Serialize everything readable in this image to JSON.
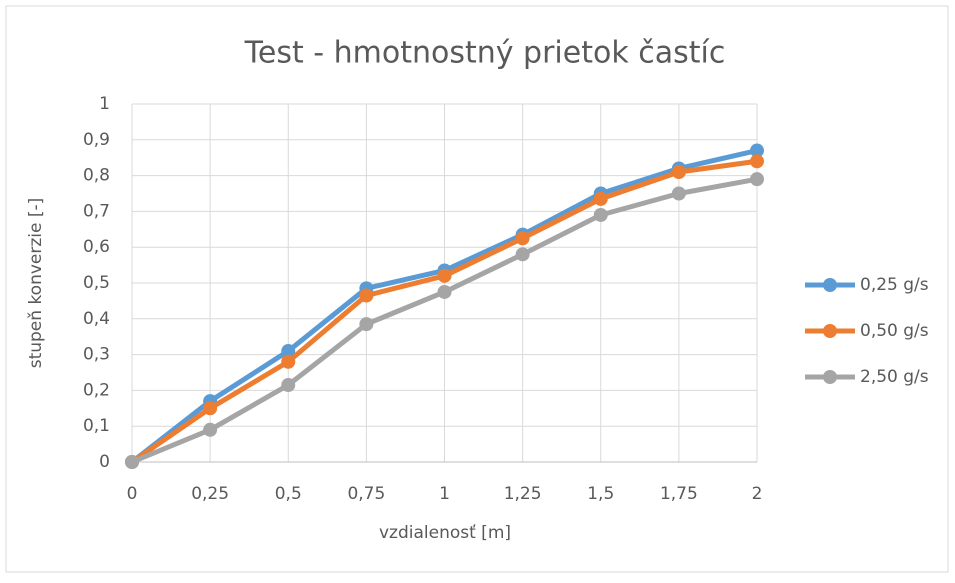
{
  "chart_data": {
    "type": "line",
    "title": "Test - hmotnostný prietok častíc",
    "x_label": "vzdialenosť [m]",
    "y_label": "stupeň konverzie [-]",
    "x": [
      0,
      0.25,
      0.5,
      0.75,
      1,
      1.25,
      1.5,
      1.75,
      2
    ],
    "xlim": [
      0,
      2
    ],
    "xticks": [
      0,
      {
        "value": 0.25,
        "label": "0,25"
      },
      {
        "value": 0.5,
        "label": "0,5"
      },
      {
        "value": 0.75,
        "label": "0,75"
      },
      1,
      {
        "value": 1.25,
        "label": "1,25"
      },
      {
        "value": 1.5,
        "label": "1,5"
      },
      {
        "value": 1.75,
        "label": "1,75"
      },
      2
    ],
    "ylim": [
      0,
      1
    ],
    "yticks": [
      0,
      {
        "value": 0.1,
        "label": "0,1"
      },
      {
        "value": 0.2,
        "label": "0,2"
      },
      {
        "value": 0.3,
        "label": "0,3"
      },
      {
        "value": 0.4,
        "label": "0,4"
      },
      {
        "value": 0.5,
        "label": "0,5"
      },
      {
        "value": 0.6,
        "label": "0,6"
      },
      {
        "value": 0.7,
        "label": "0,7"
      },
      {
        "value": 0.8,
        "label": "0,8"
      },
      {
        "value": 0.9,
        "label": "0,9"
      },
      1
    ],
    "grid": true,
    "legend": "right",
    "series": [
      {
        "name": "0,25 g/s",
        "color": "#5b9bd5",
        "values": [
          0,
          0.17,
          0.31,
          0.485,
          0.535,
          0.635,
          0.75,
          0.82,
          0.87
        ]
      },
      {
        "name": "0,50 g/s",
        "color": "#ed7d31",
        "values": [
          0,
          0.15,
          0.28,
          0.465,
          0.52,
          0.625,
          0.735,
          0.81,
          0.84
        ]
      },
      {
        "name": "2,50 g/s",
        "color": "#a5a5a5",
        "values": [
          0,
          0.09,
          0.215,
          0.385,
          0.475,
          0.58,
          0.69,
          0.75,
          0.79
        ]
      }
    ]
  }
}
